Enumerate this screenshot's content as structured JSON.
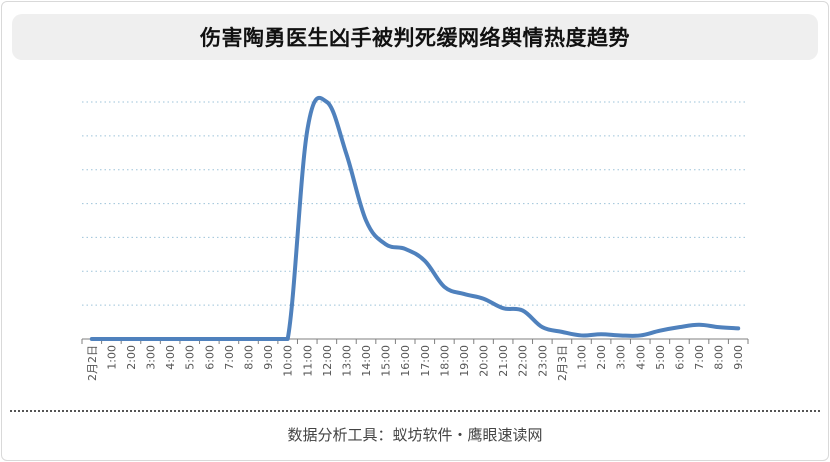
{
  "title": "伤害陶勇医生凶手被判死缓网络舆情热度趋势",
  "footer": "数据分析工具：蚁坊软件・鹰眼速读网",
  "colors": {
    "line": "#4f81bd",
    "grid": "#9dc3d9",
    "axis": "#7f7f7f",
    "tick_text": "#555555"
  },
  "chart_data": {
    "type": "line",
    "title": "",
    "xlabel": "",
    "ylabel": "",
    "grid": "horizontal-dotted",
    "legend": "none",
    "y_axis_labels_shown": false,
    "ylim": [
      0,
      100
    ],
    "categories": [
      "2月2日",
      "1:00",
      "2:00",
      "3:00",
      "4:00",
      "5:00",
      "6:00",
      "7:00",
      "8:00",
      "9:00",
      "10:00",
      "11:00",
      "12:00",
      "13:00",
      "14:00",
      "15:00",
      "16:00",
      "17:00",
      "18:00",
      "19:00",
      "20:00",
      "21:00",
      "22:00",
      "23:00",
      "2月3日",
      "1:00",
      "2:00",
      "3:00",
      "4:00",
      "5:00",
      "6:00",
      "7:00",
      "8:00",
      "9:00"
    ],
    "series": [
      {
        "values": [
          0,
          0,
          0,
          0,
          0,
          0,
          0,
          0,
          0,
          0,
          0,
          88,
          100,
          78,
          50,
          40,
          38,
          33,
          22,
          19,
          17,
          13,
          12,
          5,
          3,
          1.5,
          2,
          1.5,
          1.5,
          3.5,
          5,
          6,
          5,
          4.5
        ]
      }
    ]
  }
}
